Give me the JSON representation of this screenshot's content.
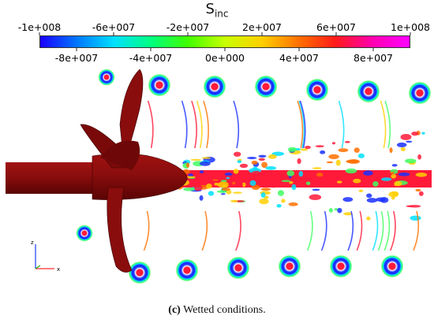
{
  "title": {
    "main": "S",
    "subscript": "inc"
  },
  "colorbar": {
    "top_ticks": [
      "-1e+008",
      "-6e+007",
      "-2e+007",
      "2e+007",
      "6e+007",
      "1e+008"
    ],
    "bottom_ticks": [
      "-8e+007",
      "-4e+007",
      "0e+000",
      "4e+007",
      "8e+007"
    ],
    "range": [
      -100000000,
      100000000
    ],
    "stops": [
      "#1a00ff",
      "#0078ff",
      "#00e0ff",
      "#00ff80",
      "#40ff00",
      "#c8ff00",
      "#ffd000",
      "#ff7000",
      "#ff1a1a",
      "#ff00b0",
      "#ff00ff"
    ]
  },
  "axes": {
    "z": "z",
    "x": "x"
  },
  "colors": {
    "propeller": "#8a0d0d",
    "propeller_dark": "#5e0505",
    "background_field": "#ffffff"
  },
  "caption": {
    "label": "(c)",
    "text": "Wetted conditions."
  }
}
